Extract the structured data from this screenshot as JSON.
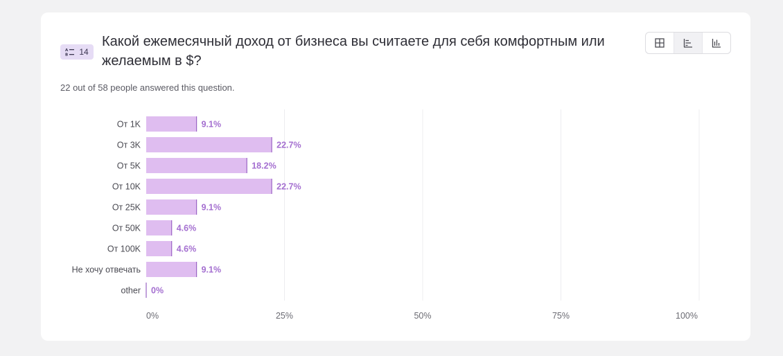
{
  "question": {
    "number": "14",
    "title": "Какой ежемесячный доход от бизнеса вы считаете для себя комфортным или желаемым в $?",
    "answered_text": "22 out of 58 people answered this question.",
    "type_icon": "multiple-choice-icon"
  },
  "view_toggle": {
    "buttons": [
      {
        "name": "grid-view-icon",
        "active": false
      },
      {
        "name": "horizontal-bar-view-icon",
        "active": true
      },
      {
        "name": "vertical-bar-view-icon",
        "active": false
      }
    ]
  },
  "colors": {
    "bar_fill": "#dfbdf0",
    "bar_edge": "#9a63c4",
    "value_text": "#a46fd0",
    "grid": "#ececef"
  },
  "chart_data": {
    "type": "bar",
    "orientation": "horizontal",
    "categories": [
      "От 1K",
      "От 3K",
      "От 5K",
      "От 10K",
      "От 25K",
      "От 50K",
      "От 100K",
      "Не хочу отвечать",
      "other"
    ],
    "values": [
      9.1,
      22.7,
      18.2,
      22.7,
      9.1,
      4.6,
      4.6,
      9.1,
      0
    ],
    "value_labels": [
      "9.1%",
      "22.7%",
      "18.2%",
      "22.7%",
      "9.1%",
      "4.6%",
      "4.6%",
      "9.1%",
      "0%"
    ],
    "xlim": [
      0,
      100
    ],
    "x_ticks": [
      0,
      25,
      50,
      75,
      100
    ],
    "x_tick_labels": [
      "0%",
      "25%",
      "50%",
      "75%",
      "100%"
    ],
    "grid": true
  }
}
